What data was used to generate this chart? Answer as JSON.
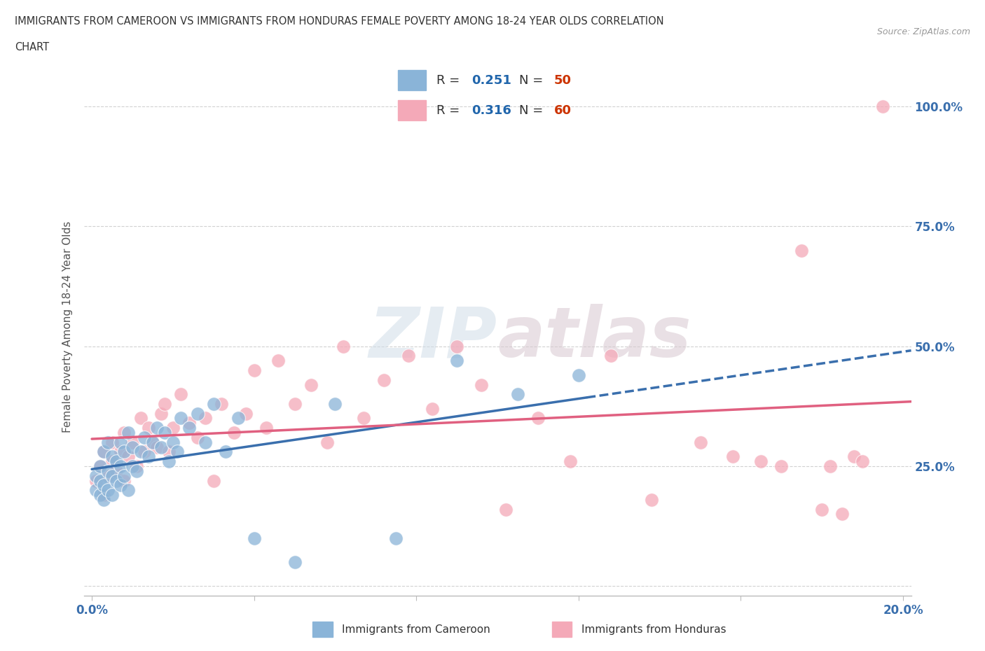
{
  "title_line1": "IMMIGRANTS FROM CAMEROON VS IMMIGRANTS FROM HONDURAS FEMALE POVERTY AMONG 18-24 YEAR OLDS CORRELATION",
  "title_line2": "CHART",
  "source": "Source: ZipAtlas.com",
  "ylabel": "Female Poverty Among 18-24 Year Olds",
  "xlim": [
    -0.002,
    0.202
  ],
  "ylim": [
    -0.02,
    1.1
  ],
  "xticks": [
    0.0,
    0.04,
    0.08,
    0.12,
    0.16,
    0.2
  ],
  "ytick_positions": [
    0.0,
    0.25,
    0.5,
    0.75,
    1.0
  ],
  "ytick_labels": [
    "",
    "25.0%",
    "50.0%",
    "75.0%",
    "100.0%"
  ],
  "cameroon_R": 0.251,
  "cameroon_N": 50,
  "honduras_R": 0.316,
  "honduras_N": 60,
  "cameroon_color": "#8ab4d8",
  "honduras_color": "#f4a9b8",
  "cameroon_line_color": "#3a6fad",
  "honduras_line_color": "#e06080",
  "legend_R_color": "#2166ac",
  "legend_N_color": "#cc3300",
  "watermark": "ZIPatlas",
  "background_color": "#ffffff",
  "grid_color": "#cccccc",
  "cameroon_x": [
    0.001,
    0.001,
    0.002,
    0.002,
    0.002,
    0.003,
    0.003,
    0.003,
    0.004,
    0.004,
    0.004,
    0.005,
    0.005,
    0.005,
    0.006,
    0.006,
    0.007,
    0.007,
    0.007,
    0.008,
    0.008,
    0.009,
    0.009,
    0.01,
    0.01,
    0.011,
    0.012,
    0.013,
    0.014,
    0.015,
    0.016,
    0.017,
    0.018,
    0.019,
    0.02,
    0.021,
    0.022,
    0.024,
    0.026,
    0.028,
    0.03,
    0.033,
    0.036,
    0.04,
    0.05,
    0.06,
    0.075,
    0.09,
    0.105,
    0.12
  ],
  "cameroon_y": [
    0.2,
    0.23,
    0.19,
    0.22,
    0.25,
    0.18,
    0.21,
    0.28,
    0.2,
    0.24,
    0.3,
    0.19,
    0.23,
    0.27,
    0.22,
    0.26,
    0.21,
    0.25,
    0.3,
    0.23,
    0.28,
    0.2,
    0.32,
    0.25,
    0.29,
    0.24,
    0.28,
    0.31,
    0.27,
    0.3,
    0.33,
    0.29,
    0.32,
    0.26,
    0.3,
    0.28,
    0.35,
    0.33,
    0.36,
    0.3,
    0.38,
    0.28,
    0.35,
    0.1,
    0.05,
    0.38,
    0.1,
    0.47,
    0.4,
    0.44
  ],
  "honduras_x": [
    0.001,
    0.002,
    0.003,
    0.003,
    0.004,
    0.005,
    0.005,
    0.006,
    0.007,
    0.008,
    0.008,
    0.009,
    0.01,
    0.011,
    0.012,
    0.013,
    0.014,
    0.015,
    0.016,
    0.017,
    0.018,
    0.019,
    0.02,
    0.022,
    0.024,
    0.026,
    0.028,
    0.03,
    0.032,
    0.035,
    0.038,
    0.04,
    0.043,
    0.046,
    0.05,
    0.054,
    0.058,
    0.062,
    0.067,
    0.072,
    0.078,
    0.084,
    0.09,
    0.096,
    0.102,
    0.11,
    0.118,
    0.128,
    0.138,
    0.15,
    0.158,
    0.165,
    0.17,
    0.175,
    0.18,
    0.182,
    0.185,
    0.188,
    0.19,
    0.195
  ],
  "honduras_y": [
    0.22,
    0.25,
    0.19,
    0.28,
    0.23,
    0.26,
    0.3,
    0.24,
    0.28,
    0.22,
    0.32,
    0.27,
    0.3,
    0.25,
    0.35,
    0.28,
    0.33,
    0.3,
    0.29,
    0.36,
    0.38,
    0.28,
    0.33,
    0.4,
    0.34,
    0.31,
    0.35,
    0.22,
    0.38,
    0.32,
    0.36,
    0.45,
    0.33,
    0.47,
    0.38,
    0.42,
    0.3,
    0.5,
    0.35,
    0.43,
    0.48,
    0.37,
    0.5,
    0.42,
    0.16,
    0.35,
    0.26,
    0.48,
    0.18,
    0.3,
    0.27,
    0.26,
    0.25,
    0.7,
    0.16,
    0.25,
    0.15,
    0.27,
    0.26,
    1.0
  ],
  "cam_line_solid_end_x": 0.122,
  "cam_line_x_start": 0.0,
  "cam_line_x_end": 0.202,
  "hon_line_x_start": 0.0,
  "hon_line_x_end": 0.202
}
